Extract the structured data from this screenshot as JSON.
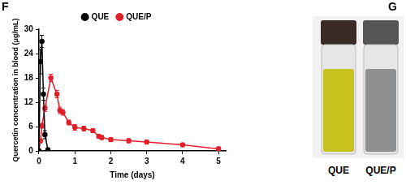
{
  "panel_labels": [
    "F",
    "G"
  ],
  "chart_data": {
    "type": "line",
    "x_label": "Time (days)",
    "y_label": "Quercetin concentration in blood (μg/mL)",
    "xlim": [
      0,
      5.2
    ],
    "xticks": [
      0,
      1,
      2,
      3,
      4,
      5
    ],
    "ylim": [
      0,
      30
    ],
    "yticks": [
      0,
      6,
      12,
      18,
      24,
      30
    ],
    "grid": false,
    "legend": "top",
    "series": [
      {
        "name": "QUE",
        "color": "#000000",
        "marker": "circle",
        "x": [
          0,
          0.042,
          0.083,
          0.125,
          0.167,
          0.25
        ],
        "values": [
          0,
          22,
          27,
          14,
          4,
          0.3
        ],
        "errors": [
          0,
          3,
          1.5,
          1.5,
          1,
          0.2
        ]
      },
      {
        "name": "QUE/P",
        "color": "#e0202a",
        "marker": "circle",
        "x": [
          0,
          0.042,
          0.083,
          0.167,
          0.333,
          0.5,
          0.583,
          0.667,
          0.833,
          1,
          1.25,
          1.5,
          1.667,
          1.75,
          2,
          2.5,
          3,
          4,
          5
        ],
        "values": [
          0,
          2.5,
          6.2,
          10.5,
          18,
          14,
          10,
          9.5,
          7,
          5.8,
          5.5,
          5,
          3.6,
          3.3,
          2.8,
          2.5,
          2.2,
          1.5,
          0.5
        ],
        "errors": [
          0,
          0.5,
          0.6,
          0.8,
          0.9,
          0.9,
          0.8,
          0.7,
          0.6,
          0.7,
          0.6,
          0.5,
          0.5,
          0.5,
          0.5,
          0.5,
          0.5,
          0.4,
          0.5
        ]
      }
    ]
  },
  "photo": {
    "labels": [
      "QUE",
      "QUE/P"
    ]
  }
}
